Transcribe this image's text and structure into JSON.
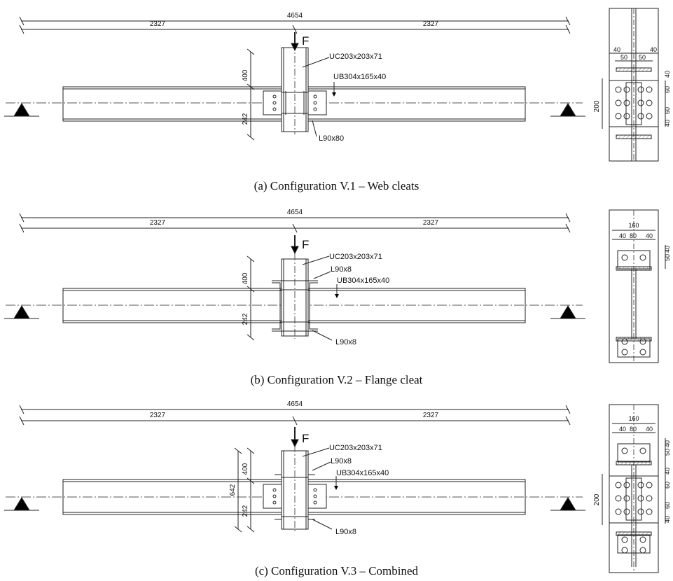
{
  "common": {
    "total_span": "4654",
    "half_span_left": "2327",
    "half_span_right": "2327",
    "load_label": "F",
    "column_section": "UC203x203x71",
    "beam_section": "UB304x165x40",
    "dim_top": "400",
    "dim_bottom": "242"
  },
  "panels": [
    {
      "caption": "(a) Configuration V.1 – Web cleats",
      "cleat_label": "L90x80",
      "side": {
        "d40a": "40",
        "d50a": "50",
        "d50b": "50",
        "d40b": "40",
        "d200": "200",
        "v40": "40",
        "v60": "60",
        "v60b": "60",
        "v40b": "40"
      }
    },
    {
      "caption": "(b) Configuration V.2 – Flange cleat",
      "cleat_top_label": "L90x8",
      "cleat_bottom_label": "L90x8",
      "side": {
        "d160": "160",
        "d40a": "40",
        "d80": "80",
        "d40b": "40",
        "v50": "50",
        "v40": "40"
      }
    },
    {
      "caption": "(c) Configuration V.3 – Combined",
      "cleat_top_label": "L90x8",
      "cleat_bottom_label": "L90x8",
      "dim_total": "642",
      "side": {
        "d160": "160",
        "d40a": "40",
        "d80": "80",
        "d40b": "40",
        "v50": "50",
        "v40": "40",
        "d200": "200",
        "w40": "40",
        "w60": "60",
        "w60b": "60",
        "w40b": "40"
      }
    }
  ]
}
